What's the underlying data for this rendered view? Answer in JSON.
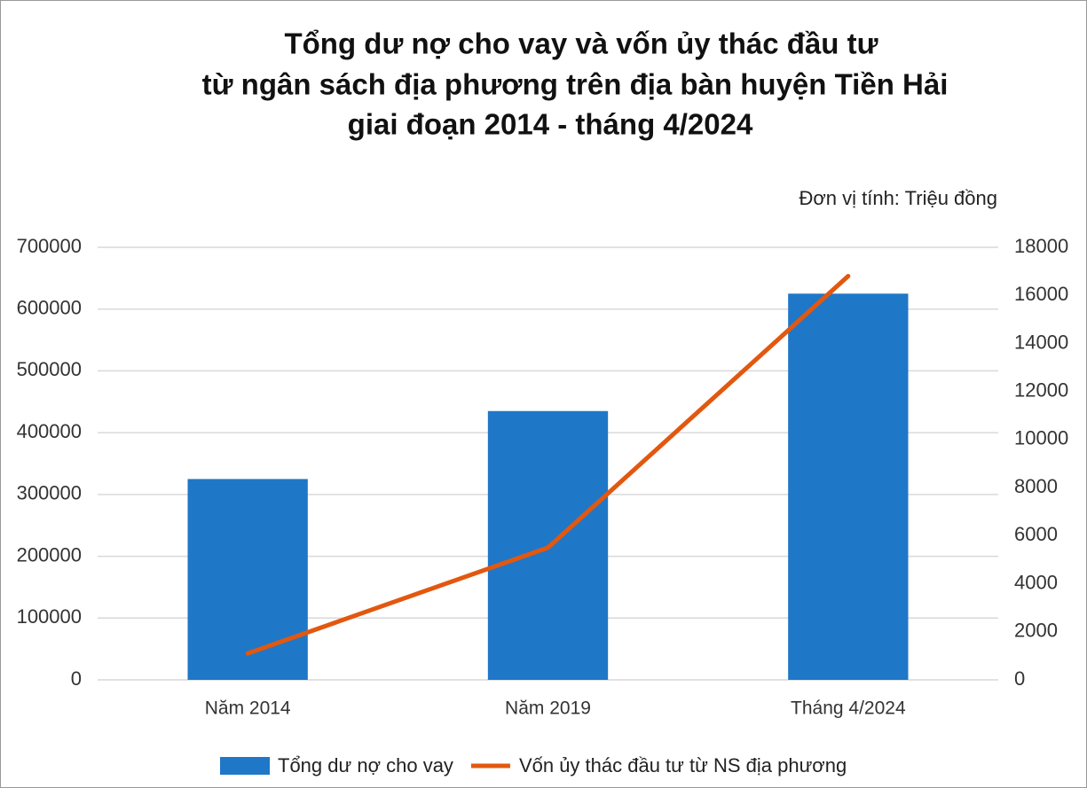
{
  "chart_data": {
    "type": "bar-line",
    "title": [
      "Tổng dư nợ cho vay và vốn ủy thác đầu tư",
      "từ ngân sách địa phương trên địa bàn huyện Tiền Hải",
      "giai đoạn 2014 - tháng 4/2024"
    ],
    "annotation": "Đơn vị tính: Triệu đồng",
    "categories": [
      "Năm 2014",
      "Năm 2019",
      "Tháng 4/2024"
    ],
    "series": [
      {
        "name": "Tổng dư nợ cho vay",
        "type": "bar",
        "color": "#1f77c8",
        "axis": "y",
        "values": [
          325000,
          435000,
          625000
        ]
      },
      {
        "name": "Vốn ủy thác đầu tư từ NS địa phương",
        "type": "line",
        "color": "#e2580f",
        "axis": "y2",
        "values": [
          1100,
          5500,
          16800
        ]
      }
    ],
    "ylim": [
      0,
      700000
    ],
    "yticks": [
      0,
      100000,
      200000,
      300000,
      400000,
      500000,
      600000,
      700000
    ],
    "y2lim": [
      0,
      18000
    ],
    "y2ticks": [
      0,
      2000,
      4000,
      6000,
      8000,
      10000,
      12000,
      14000,
      16000,
      18000
    ],
    "grid": true,
    "legend": "bottom"
  }
}
